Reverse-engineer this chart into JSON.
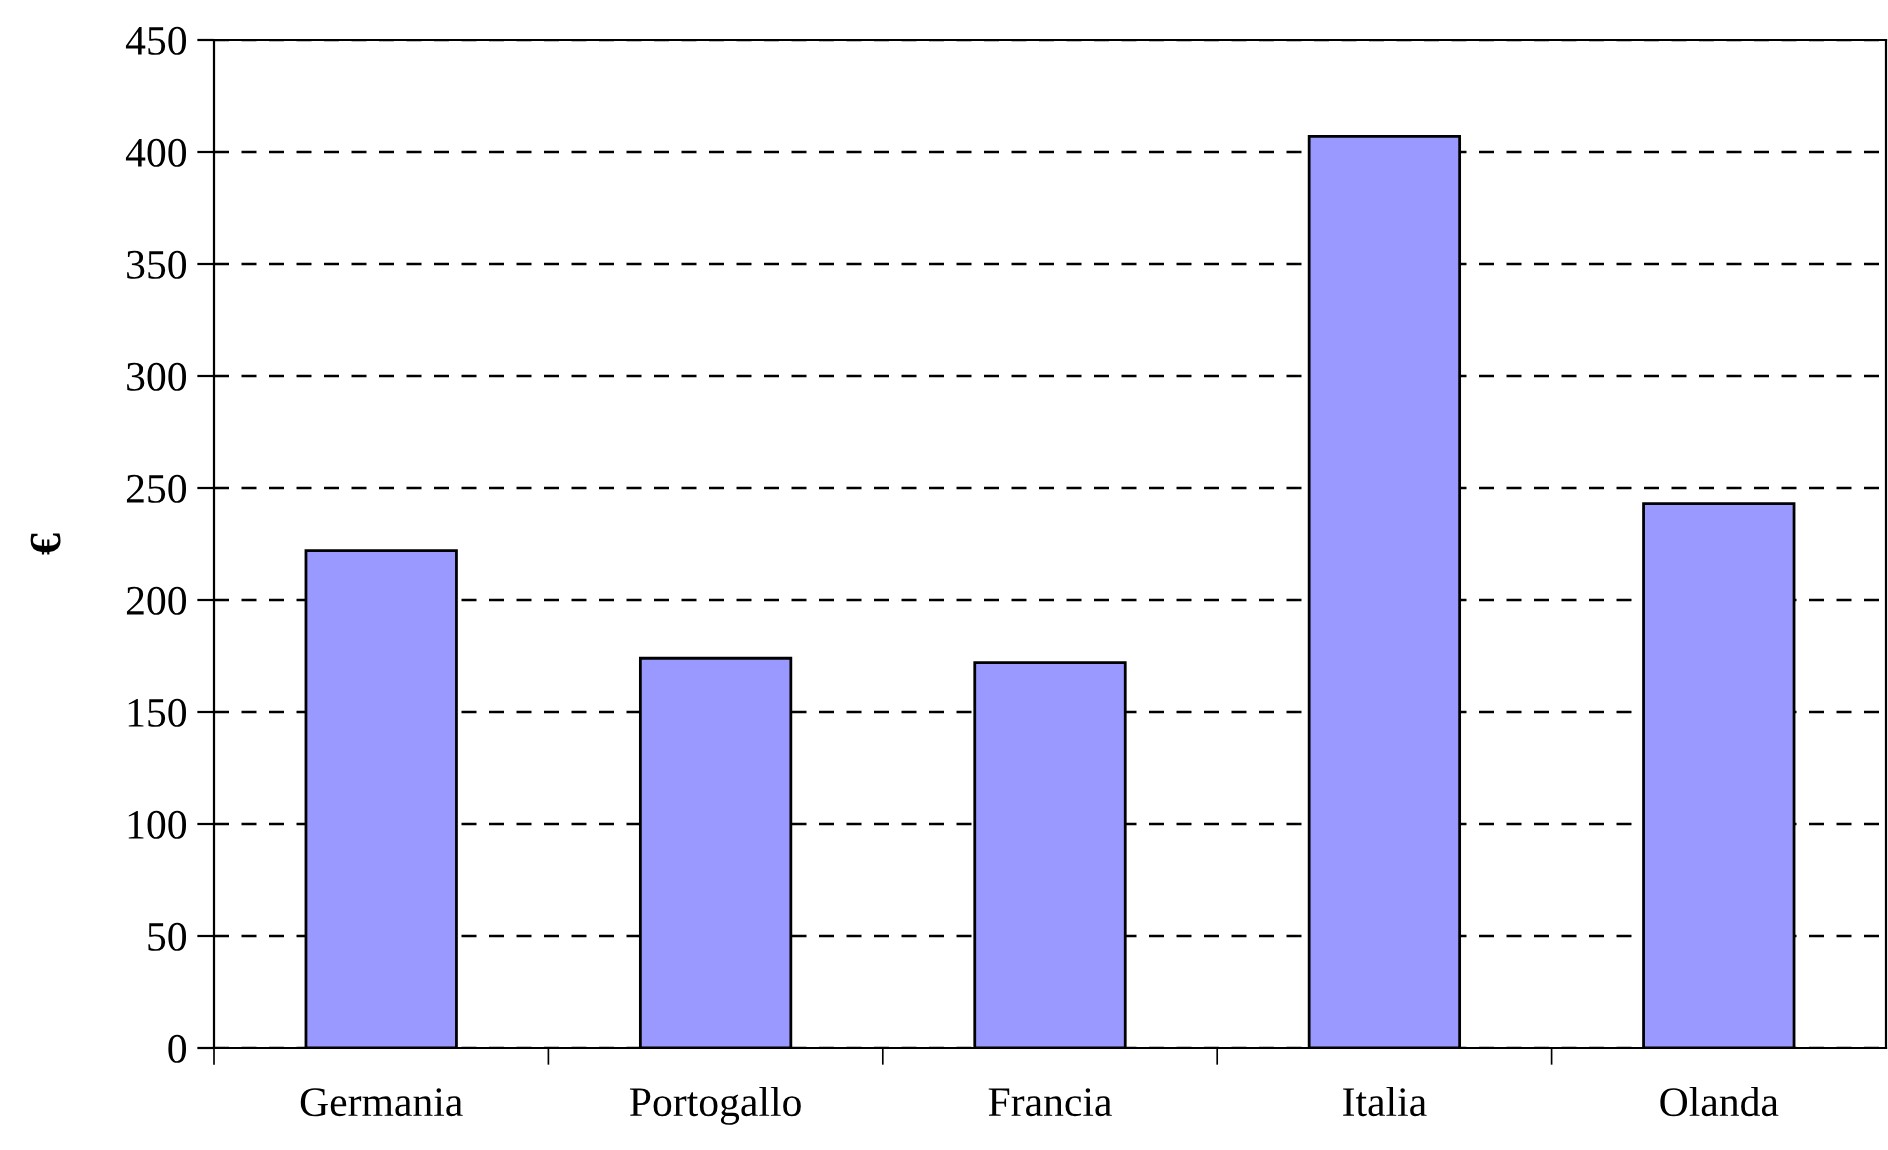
{
  "chart_data": {
    "type": "bar",
    "ylabel": "€",
    "categories": [
      "Germania",
      "Portogallo",
      "Francia",
      "Italia",
      "Olanda"
    ],
    "values": [
      222,
      174,
      172,
      407,
      243
    ],
    "color": "#9999ff",
    "ylim": [
      0,
      450
    ],
    "yticks": [
      0,
      50,
      100,
      150,
      200,
      250,
      300,
      350,
      400,
      450
    ],
    "grid": "y",
    "line_style": "dashed"
  }
}
